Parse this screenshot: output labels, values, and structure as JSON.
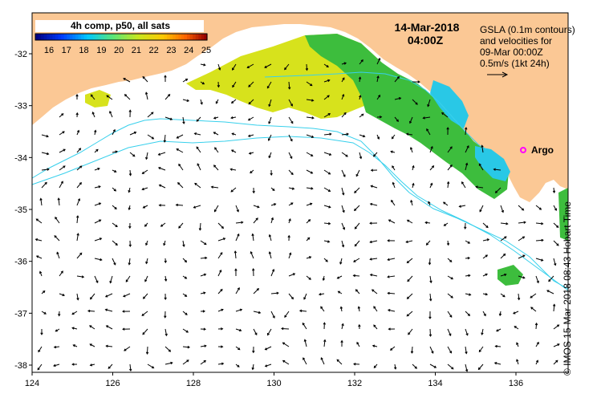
{
  "colorbar": {
    "title": "4h comp, p50, all sats",
    "ticks": [
      "16",
      "17",
      "18",
      "19",
      "20",
      "21",
      "22",
      "23",
      "24",
      "25"
    ]
  },
  "timestamp": {
    "date": "14-Mar-2018",
    "time": "04:00Z"
  },
  "gsla_note": {
    "line1": "GSLA (0.1m contours)",
    "line2": "and velocities for",
    "line3": "09-Mar 00:00Z",
    "line4": "0.5m/s (1kt 24h)"
  },
  "argo_label": "Argo",
  "side_label": "© IMOS 15-Mar-2018 08:43 Hobart Time",
  "axes": {
    "x_ticks": [
      "124",
      "126",
      "128",
      "130",
      "132",
      "134",
      "136"
    ],
    "y_ticks": [
      "-32",
      "-33",
      "-34",
      "-35",
      "-36",
      "-37",
      "-38"
    ]
  },
  "colors": {
    "land": "#fbc895",
    "sst_green": "#3dbd3d",
    "sst_yellow": "#d7e21c",
    "sst_cyan": "#29c8e6",
    "contour": "#38d0ec",
    "argo": "#ff00ff"
  }
}
